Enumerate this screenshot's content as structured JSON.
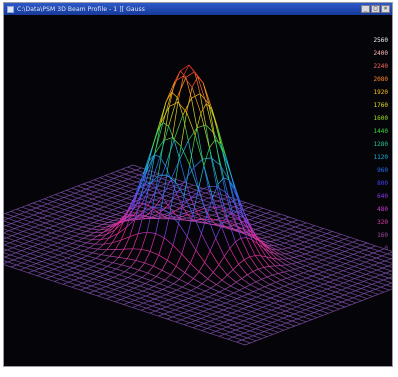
{
  "window": {
    "title": "C:\\Data\\PSM 3D Beam Profile - 1 ][ Gauss",
    "controls": [
      "_",
      "□",
      "×"
    ]
  },
  "scale_legend": {
    "labels": [
      "2560",
      "2400",
      "2240",
      "2080",
      "1920",
      "1760",
      "1600",
      "1440",
      "1280",
      "1120",
      "960",
      "800",
      "640",
      "480",
      "320",
      "160",
      "0"
    ],
    "colors": [
      "#f4f4f4",
      "#ffb8b8",
      "#ff6a5a",
      "#ff8a2a",
      "#ffc21e",
      "#e0e020",
      "#9ee020",
      "#3ed83a",
      "#26c896",
      "#1eb0d8",
      "#2a6cf0",
      "#4a3ef0",
      "#8a3ae8",
      "#c83ad0",
      "#e03aa8",
      "#a04aa0",
      "#7a4a9a"
    ]
  },
  "plot": {
    "background": "#050509",
    "base_color": "#6f4a9a"
  }
}
